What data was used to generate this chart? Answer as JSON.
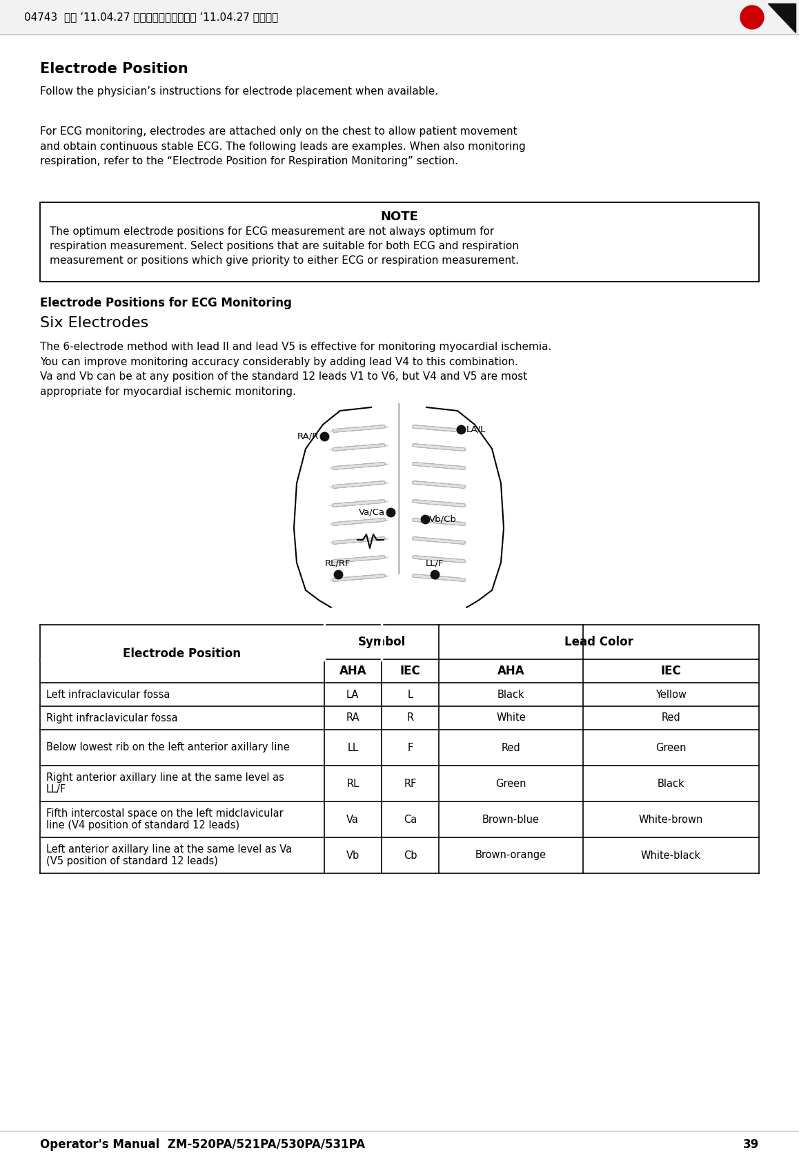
{
  "header_text": "04743  作成 ’11.04.27 阿山　悠己　　　承認 ’11.04.27 真柄　睑",
  "title": "Electrode Position",
  "para1": "Follow the physician’s instructions for electrode placement when available.",
  "para2": "For ECG monitoring, electrodes are attached only on the chest to allow patient movement\nand obtain continuous stable ECG. The following leads are examples. When also monitoring\nrespiration, refer to the “Electrode Position for Respiration Monitoring” section.",
  "note_title": "NOTE",
  "note_body": "The optimum electrode positions for ECG measurement are not always optimum for\nrespiration measurement. Select positions that are suitable for both ECG and respiration\nmeasurement or positions which give priority to either ECG or respiration measurement.",
  "section_title": "Electrode Positions for ECG Monitoring",
  "subsection_title": "Six Electrodes",
  "para3": "The 6-electrode method with lead II and lead V5 is effective for monitoring myocardial ischemia.\nYou can improve monitoring accuracy considerably by adding lead V4 to this combination.\nVa and Vb can be at any position of the standard 12 leads V1 to V6, but V4 and V5 are most\nappropriate for myocardial ischemic monitoring.",
  "footer_text": "Operator's Manual  ZM-520PA/521PA/530PA/531PA",
  "page_number": "39",
  "table_rows": [
    [
      "Left infraclavicular fossa",
      "LA",
      "L",
      "Black",
      "Yellow"
    ],
    [
      "Right infraclavicular fossa",
      "RA",
      "R",
      "White",
      "Red"
    ],
    [
      "Below lowest rib on the left anterior axillary line",
      "LL",
      "F",
      "Red",
      "Green"
    ],
    [
      "Right anterior axillary line at the same level as\nLL/F",
      "RL",
      "RF",
      "Green",
      "Black"
    ],
    [
      "Fifth intercostal space on the left midclavicular\nline (V4 position of standard 12 leads)",
      "Va",
      "Ca",
      "Brown-blue",
      "White-brown"
    ],
    [
      "Left anterior axillary line at the same level as Va\n(V5 position of standard 12 leads)",
      "Vb",
      "Cb",
      "Brown-orange",
      "White-black"
    ]
  ],
  "bg_color": "#ffffff",
  "text_color": "#000000"
}
